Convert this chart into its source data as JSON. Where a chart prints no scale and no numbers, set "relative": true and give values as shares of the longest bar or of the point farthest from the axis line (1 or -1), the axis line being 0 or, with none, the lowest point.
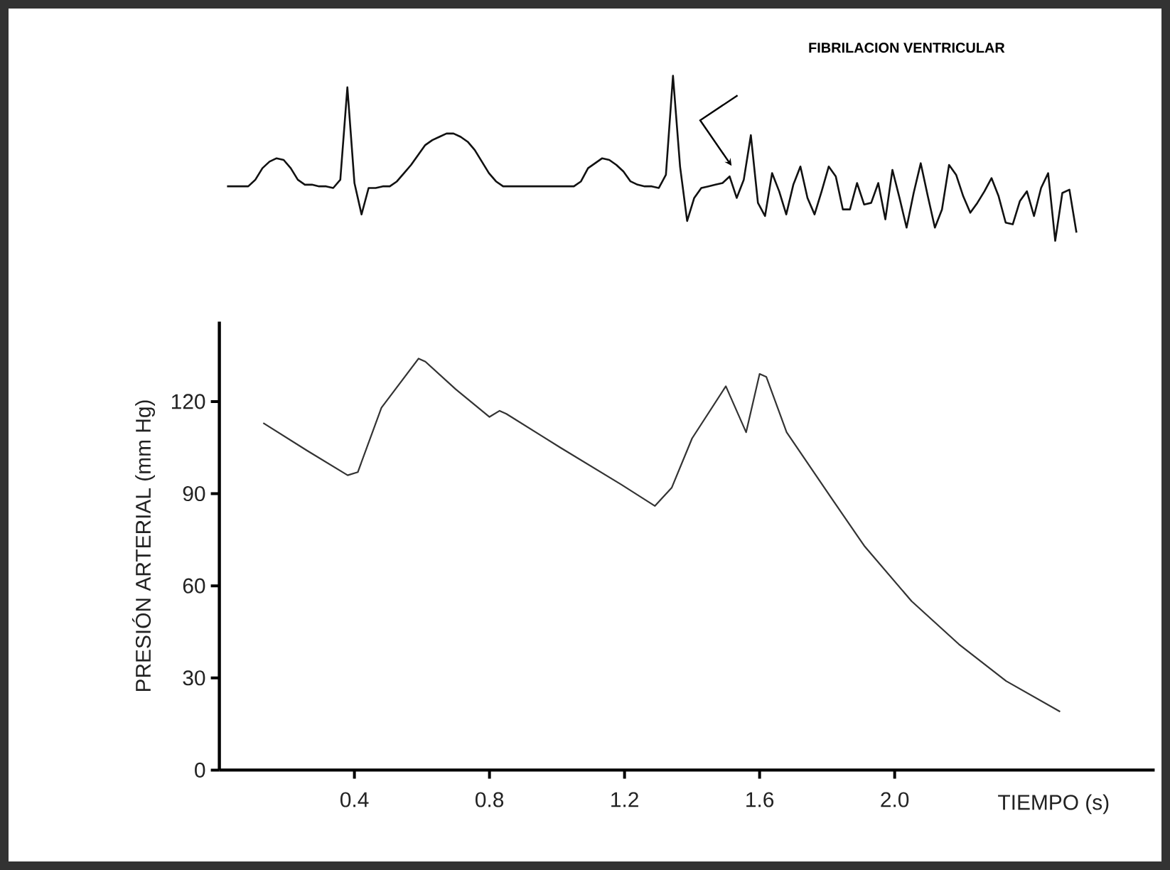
{
  "chart_data": [
    {
      "type": "line",
      "relative": true,
      "color": "#111111",
      "annotations": [
        "FIBRILACION VENTRICULAR"
      ],
      "categories": [
        null,
        null,
        null,
        null,
        null,
        null,
        null,
        null,
        null,
        null,
        null,
        null,
        null,
        null,
        null,
        null,
        null,
        null,
        null,
        null,
        null,
        null,
        null,
        null,
        null,
        null,
        null,
        null,
        null,
        null,
        null,
        null,
        null,
        null,
        null,
        null,
        null,
        null,
        null,
        null,
        null,
        null,
        null,
        null,
        null,
        null,
        null,
        null,
        null,
        null,
        null,
        null,
        null,
        null,
        null,
        null,
        null,
        null,
        null,
        null,
        null,
        null,
        null,
        null,
        null,
        null,
        null,
        null,
        null,
        null,
        null,
        null,
        null,
        null,
        null,
        null,
        null,
        null,
        null,
        null,
        null,
        null,
        null,
        null,
        null,
        null,
        null,
        null,
        null,
        null,
        null,
        null,
        null,
        null,
        null,
        null,
        null,
        null,
        null,
        null,
        null,
        null,
        null,
        null,
        null,
        null,
        null,
        null,
        null,
        null,
        null,
        null,
        null,
        null,
        null,
        null,
        null,
        null,
        null,
        null,
        null
      ],
      "values": [
        0.33,
        0.33,
        0.33,
        0.33,
        0.37,
        0.44,
        0.48,
        0.5,
        0.49,
        0.44,
        0.37,
        0.34,
        0.34,
        0.33,
        0.33,
        0.32,
        0.37,
        0.93,
        0.35,
        0.16,
        0.32,
        0.32,
        0.33,
        0.33,
        0.36,
        0.41,
        0.46,
        0.52,
        0.58,
        0.61,
        0.63,
        0.65,
        0.65,
        0.63,
        0.6,
        0.55,
        0.48,
        0.41,
        0.36,
        0.33,
        0.33,
        0.33,
        0.33,
        0.33,
        0.33,
        0.33,
        0.33,
        0.33,
        0.33,
        0.33,
        0.36,
        0.44,
        0.47,
        0.5,
        0.49,
        0.46,
        0.42,
        0.36,
        0.34,
        0.33,
        0.33,
        0.32,
        0.4,
        1.0,
        0.45,
        0.12,
        0.26,
        0.32,
        0.33,
        0.34,
        0.35,
        0.39,
        0.26,
        0.37,
        0.64,
        0.23,
        0.15,
        0.41,
        0.3,
        0.16,
        0.34,
        0.45,
        0.26,
        0.16,
        0.3,
        0.45,
        0.39,
        0.19,
        0.19,
        0.35,
        0.22,
        0.23,
        0.35,
        0.13,
        0.43,
        0.26,
        0.08,
        0.29,
        0.47,
        0.27,
        0.08,
        0.19,
        0.46,
        0.4,
        0.27,
        0.17,
        0.23,
        0.3,
        0.38,
        0.27,
        0.11,
        0.1,
        0.24,
        0.3,
        0.15,
        0.32,
        0.41,
        0.0,
        0.29,
        0.31,
        0.05
      ]
    },
    {
      "type": "line",
      "color": "#333333",
      "xlabel": "TIEMPO (s)",
      "ylabel": "PRESIÓN ARTERIAL (mm Hg)",
      "x": [
        0.13,
        0.26,
        0.38,
        0.41,
        0.48,
        0.59,
        0.61,
        0.7,
        0.8,
        0.83,
        0.85,
        1.01,
        1.19,
        1.29,
        1.34,
        1.4,
        1.5,
        1.56,
        1.6,
        1.62,
        1.68,
        1.81,
        1.91,
        2.05,
        2.19,
        2.33,
        2.49
      ],
      "values": [
        113,
        104,
        96,
        97,
        118,
        134,
        133,
        124,
        115,
        117,
        116,
        105,
        93,
        86,
        92,
        108,
        125,
        110,
        129,
        128,
        110,
        89,
        73,
        55,
        41,
        29,
        19
      ],
      "xlim": [
        0,
        2.77
      ],
      "ylim": [
        0,
        146
      ],
      "xticks": [
        0.4,
        0.8,
        1.2,
        1.6,
        {
          "value": 2,
          "label": "2.0"
        }
      ],
      "yticks": [
        0,
        30,
        60,
        90,
        120
      ]
    }
  ]
}
